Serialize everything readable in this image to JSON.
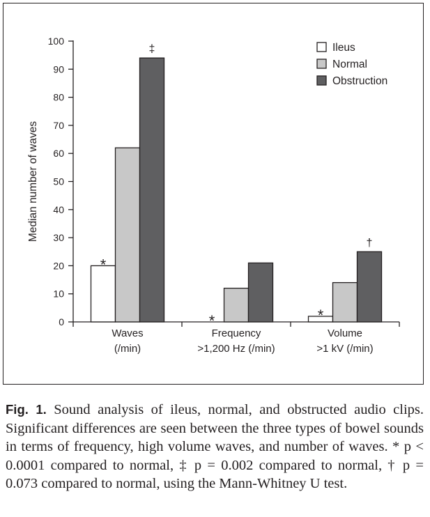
{
  "chart_data": {
    "type": "bar",
    "title": "",
    "ylabel": "Median number of waves",
    "xlabel": "",
    "ylim": [
      0,
      100
    ],
    "yticks": [
      0,
      10,
      20,
      30,
      40,
      50,
      60,
      70,
      80,
      90,
      100
    ],
    "grid": false,
    "legend_position": "top-right",
    "categories": [
      {
        "line1": "Waves",
        "line2": "(/min)"
      },
      {
        "line1": "Frequency",
        "line2": ">1,200 Hz (/min)"
      },
      {
        "line1": "Volume",
        "line2": ">1 kV (/min)"
      }
    ],
    "series": [
      {
        "name": "Ileus",
        "color": "#ffffff",
        "values": [
          20,
          0,
          2
        ]
      },
      {
        "name": "Normal",
        "color": "#c8c8c8",
        "values": [
          62,
          12,
          14
        ]
      },
      {
        "name": "Obstruction",
        "color": "#5f5f61",
        "values": [
          94,
          21,
          25
        ]
      }
    ],
    "annotations": [
      {
        "category": 0,
        "series": 0,
        "text": "*"
      },
      {
        "category": 0,
        "series": 2,
        "text": "‡"
      },
      {
        "category": 1,
        "series": 0,
        "text": "*"
      },
      {
        "category": 2,
        "series": 0,
        "text": "*"
      },
      {
        "category": 2,
        "series": 2,
        "text": "†"
      }
    ]
  },
  "caption": {
    "label": "Fig. 1.",
    "text": " Sound analysis of ileus, normal, and obstructed audio clips. Significant differences are seen between the three types of bowel sounds in terms of frequency, high volume waves, and number of waves. * p < 0.0001 compared to normal, ‡ p = 0.002 compared to normal, † p = 0.073 compared to normal, using the Mann-Whitney U test."
  }
}
